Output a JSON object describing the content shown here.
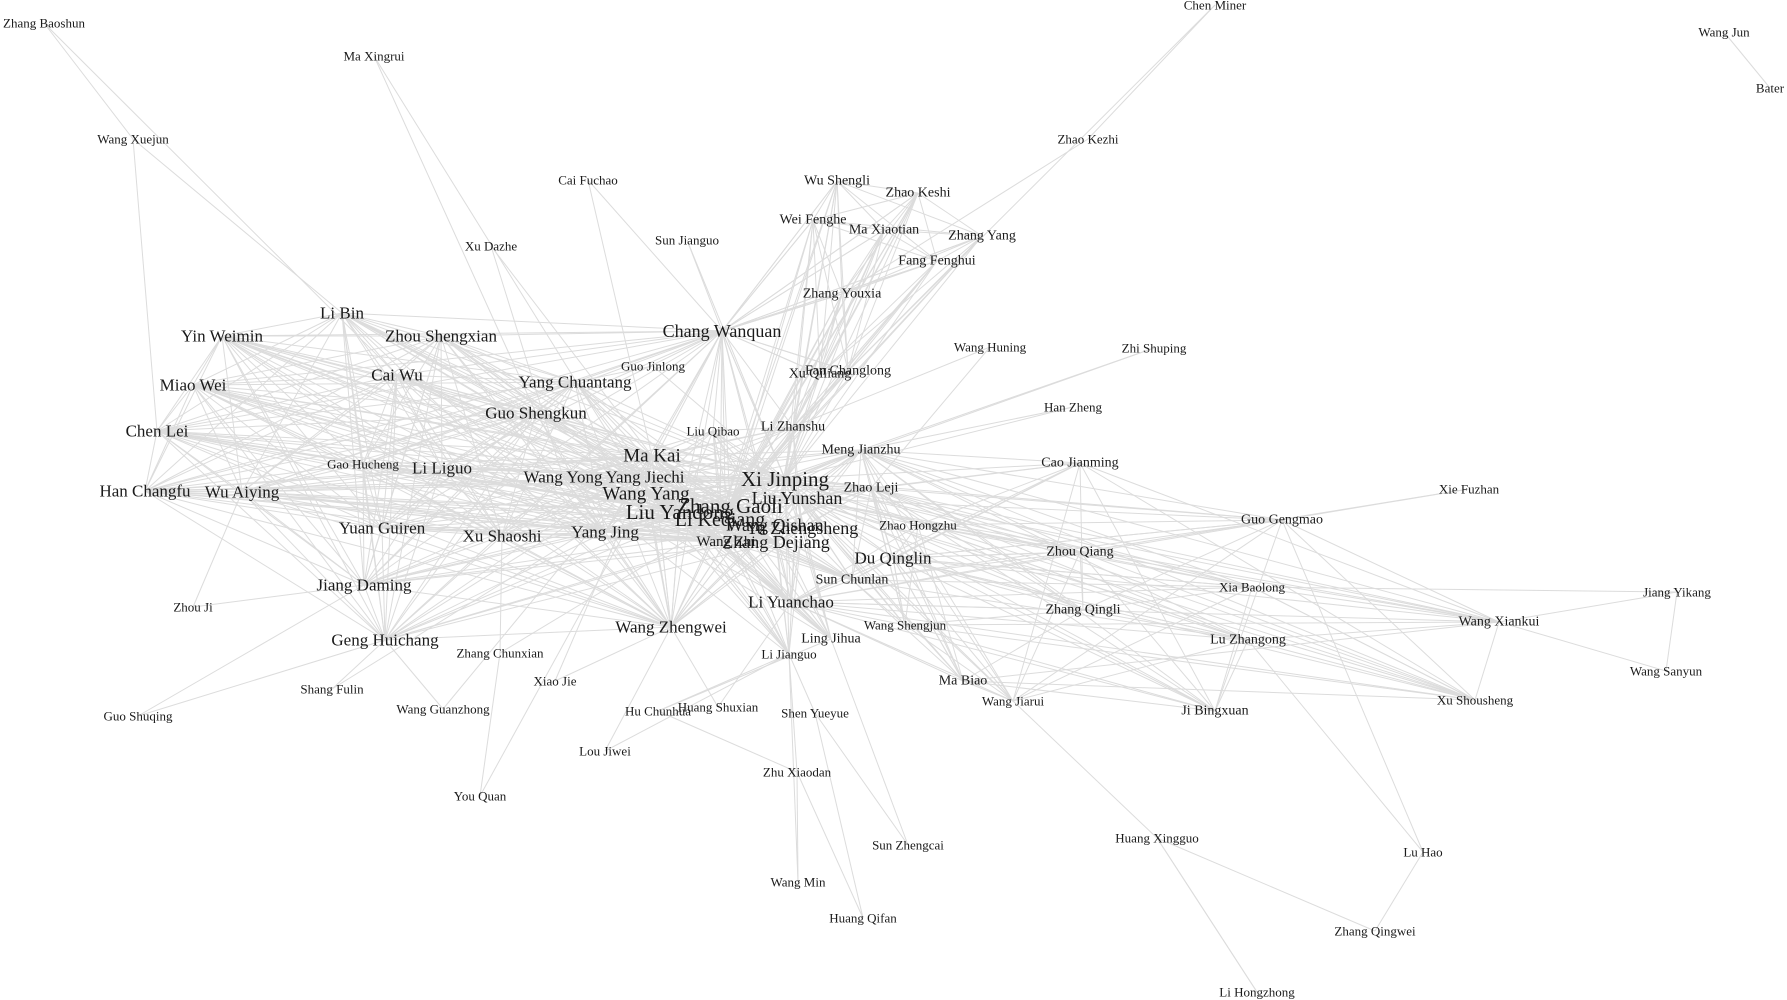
{
  "graph": {
    "edge_color": "#dcdcdc",
    "label_color": "#1a1a1a",
    "nodes": [
      {
        "name": "Xi Jinping",
        "degree": 9
      },
      {
        "name": "Zhang Gaoli",
        "degree": 9
      },
      {
        "name": "Liu Yandong",
        "degree": 9
      },
      {
        "name": "Li Keqiang",
        "degree": 8
      },
      {
        "name": "Ma Kai",
        "degree": 7
      },
      {
        "name": "Wang Yang",
        "degree": 7
      },
      {
        "name": "Chang Wanquan",
        "degree": 6
      },
      {
        "name": "Wang Qishan",
        "degree": 6
      },
      {
        "name": "Yu Zhengsheng",
        "degree": 6
      },
      {
        "name": "Zhang Dejiang",
        "degree": 6
      },
      {
        "name": "Liu Yunshan",
        "degree": 6
      },
      {
        "name": "Wang Yong",
        "degree": 5
      },
      {
        "name": "Yang Jiechi",
        "degree": 5
      },
      {
        "name": "Yang Jing",
        "degree": 5
      },
      {
        "name": "Wang Zhengwei",
        "degree": 5
      },
      {
        "name": "Li Yuanchao",
        "degree": 5
      },
      {
        "name": "Du Qinglin",
        "degree": 5
      },
      {
        "name": "Guo Shengkun",
        "degree": 5
      },
      {
        "name": "Yang Chuantang",
        "degree": 5
      },
      {
        "name": "Zhou Shengxian",
        "degree": 5
      },
      {
        "name": "Li Bin",
        "degree": 5
      },
      {
        "name": "Yin Weimin",
        "degree": 5
      },
      {
        "name": "Miao Wei",
        "degree": 5
      },
      {
        "name": "Cai Wu",
        "degree": 5
      },
      {
        "name": "Chen Lei",
        "degree": 5
      },
      {
        "name": "Han Changfu",
        "degree": 5
      },
      {
        "name": "Wu Aiying",
        "degree": 5
      },
      {
        "name": "Li Liguo",
        "degree": 5
      },
      {
        "name": "Yuan Guiren",
        "degree": 5
      },
      {
        "name": "Xu Shaoshi",
        "degree": 5
      },
      {
        "name": "Jiang Daming",
        "degree": 5
      },
      {
        "name": "Geng Huichang",
        "degree": 5
      },
      {
        "name": "Wang Zhi",
        "degree": 4
      },
      {
        "name": "Zhou Qiang",
        "degree": 3
      },
      {
        "name": "Zhang Qingli",
        "degree": 3
      },
      {
        "name": "Lu Zhangong",
        "degree": 3
      },
      {
        "name": "Wang Xiankui",
        "degree": 3
      },
      {
        "name": "Guo Gengmao",
        "degree": 3
      },
      {
        "name": "Ji Bingxuan",
        "degree": 3
      },
      {
        "name": "Zhao Leji",
        "degree": 3
      },
      {
        "name": "Cao Jianming",
        "degree": 3
      },
      {
        "name": "Meng Jianzhu",
        "degree": 3
      },
      {
        "name": "Sun Chunlan",
        "degree": 3
      },
      {
        "name": "Wu Shengli",
        "degree": 3
      },
      {
        "name": "Zhao Keshi",
        "degree": 3
      },
      {
        "name": "Fang Fenghui",
        "degree": 3
      },
      {
        "name": "Ma Xiaotian",
        "degree": 3
      },
      {
        "name": "Zhang Yang",
        "degree": 3
      },
      {
        "name": "Wei Fenghe",
        "degree": 3
      },
      {
        "name": "Zhang Youxia",
        "degree": 3
      },
      {
        "name": "Fan Changlong",
        "degree": 3
      },
      {
        "name": "Xu Qiliang",
        "degree": 3
      },
      {
        "name": "Li Zhanshu",
        "degree": 3
      },
      {
        "name": "Ling Jihua",
        "degree": 3
      },
      {
        "name": "Ma Biao",
        "degree": 3
      },
      {
        "name": "Liu Qibao",
        "degree": 2
      },
      {
        "name": "Guo Jinlong",
        "degree": 2
      },
      {
        "name": "Sun Jianguo",
        "degree": 2
      },
      {
        "name": "Cai Fuchao",
        "degree": 2
      },
      {
        "name": "Xu Dazhe",
        "degree": 2
      },
      {
        "name": "Gao Hucheng",
        "degree": 2
      },
      {
        "name": "Zhou Ji",
        "degree": 2
      },
      {
        "name": "Zhang Chunxian",
        "degree": 2
      },
      {
        "name": "Shang Fulin",
        "degree": 2
      },
      {
        "name": "Guo Shuqing",
        "degree": 2
      },
      {
        "name": "Wang Guanzhong",
        "degree": 2
      },
      {
        "name": "Xiao Jie",
        "degree": 2
      },
      {
        "name": "Hu Chunhua",
        "degree": 2
      },
      {
        "name": "Huang Shuxian",
        "degree": 2
      },
      {
        "name": "Lou Jiwei",
        "degree": 2
      },
      {
        "name": "You Quan",
        "degree": 2
      },
      {
        "name": "Shen Yueyue",
        "degree": 2
      },
      {
        "name": "Li Jianguo",
        "degree": 2
      },
      {
        "name": "Wang Shengjun",
        "degree": 2
      },
      {
        "name": "Zhao Hongzhu",
        "degree": 2
      },
      {
        "name": "Wang Jiarui",
        "degree": 2
      },
      {
        "name": "Zhu Xiaodan",
        "degree": 2
      },
      {
        "name": "Sun Zhengcai",
        "degree": 2
      },
      {
        "name": "Wang Min",
        "degree": 2
      },
      {
        "name": "Huang Qifan",
        "degree": 2
      },
      {
        "name": "Huang Xingguo",
        "degree": 2
      },
      {
        "name": "Li Hongzhong",
        "degree": 2
      },
      {
        "name": "Zhang Qingwei",
        "degree": 2
      },
      {
        "name": "Lu Hao",
        "degree": 2
      },
      {
        "name": "Xu Shousheng",
        "degree": 2
      },
      {
        "name": "Wang Sanyun",
        "degree": 2
      },
      {
        "name": "Jiang Yikang",
        "degree": 2
      },
      {
        "name": "Xia Baolong",
        "degree": 2
      },
      {
        "name": "Xie Fuzhan",
        "degree": 2
      },
      {
        "name": "Han Zheng",
        "degree": 2
      },
      {
        "name": "Wang Huning",
        "degree": 2
      },
      {
        "name": "Zhi Shuping",
        "degree": 2
      },
      {
        "name": "Zhao Kezhi",
        "degree": 2
      },
      {
        "name": "Chen Miner",
        "degree": 2
      },
      {
        "name": "Wang Jun",
        "degree": 2
      },
      {
        "name": "Bater",
        "degree": 2
      },
      {
        "name": "Zhang Baoshun",
        "degree": 2
      },
      {
        "name": "Ma Xingrui",
        "degree": 2
      },
      {
        "name": "Wang Xuejun",
        "degree": 2
      }
    ]
  }
}
